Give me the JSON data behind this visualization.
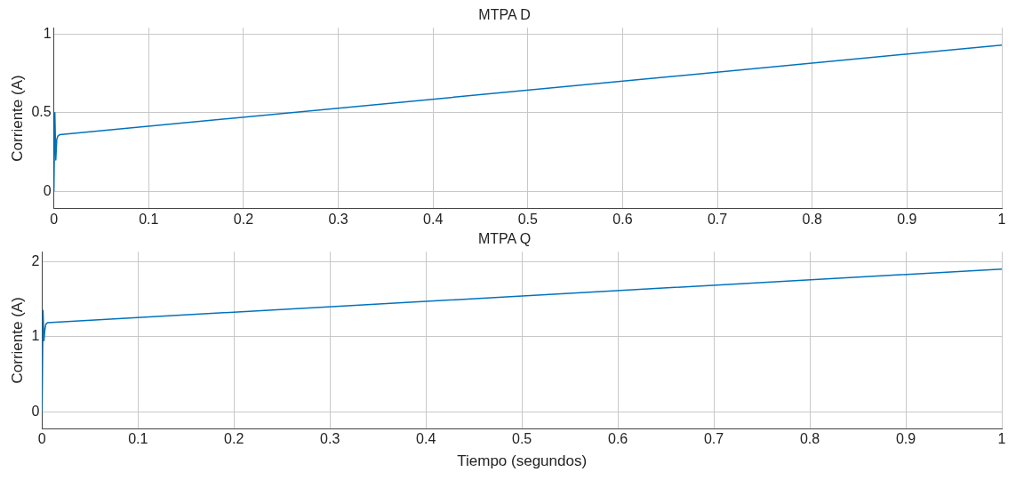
{
  "chart_data": [
    {
      "type": "line",
      "title": "MTPA D",
      "ylabel": "Corriente (A)",
      "x": [
        0,
        0.001,
        0.002,
        0.003,
        0.004,
        0.006,
        1
      ],
      "series": [
        {
          "color": "#0072bd",
          "values": [
            0,
            0.5,
            0.2,
            0.33,
            0.35,
            0.36,
            0.93
          ]
        }
      ],
      "xlim": [
        0,
        1
      ],
      "xticks": [
        0,
        0.1,
        0.2,
        0.3,
        0.4,
        0.5,
        0.6,
        0.7,
        0.8,
        0.9,
        1
      ],
      "ylim": [
        -0.11,
        1.04
      ],
      "yticks": [
        0,
        0.5,
        1
      ],
      "grid": true,
      "legend": false
    },
    {
      "type": "line",
      "title": "MTPA Q",
      "xlabel": "Tiempo (segundos)",
      "ylabel": "Corriente (A)",
      "x": [
        0,
        0.001,
        0.002,
        0.003,
        0.004,
        0.006,
        1
      ],
      "series": [
        {
          "color": "#0072bd",
          "values": [
            0,
            1.35,
            0.95,
            1.1,
            1.17,
            1.19,
            1.9
          ]
        }
      ],
      "xlim": [
        0,
        1
      ],
      "xticks": [
        0,
        0.1,
        0.2,
        0.3,
        0.4,
        0.5,
        0.6,
        0.7,
        0.8,
        0.9,
        1
      ],
      "ylim": [
        -0.22,
        2.13
      ],
      "yticks": [
        0,
        1,
        2
      ],
      "grid": true,
      "legend": false
    }
  ]
}
